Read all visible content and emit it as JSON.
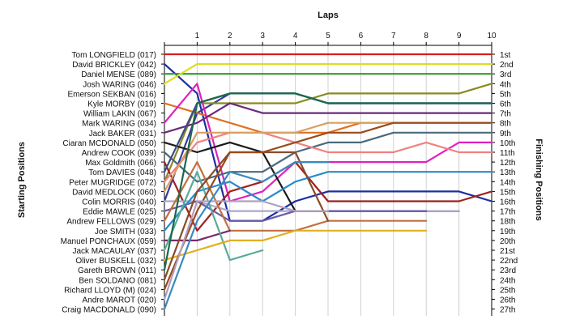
{
  "chart_data": {
    "type": "line",
    "x_axis_title": "Laps",
    "left_axis_title": "Starting Positions",
    "right_axis_title": "Finishing Positions",
    "laps": [
      1,
      2,
      3,
      4,
      5,
      6,
      7,
      8,
      9,
      10
    ],
    "lap_labels": [
      "1",
      "2",
      "3",
      "4",
      "5",
      "6",
      "7",
      "8",
      "9",
      "10"
    ],
    "start_labels": [
      "Tom LONGFIELD (017)",
      "David BRICKLEY (042)",
      "Daniel MENSE (089)",
      "Josh WARING (046)",
      "Emerson SEKBAN (016)",
      "Kyle MORBY (019)",
      "William LAKIN (067)",
      "Mark WARING (034)",
      "Jack BAKER (031)",
      "Ciaran MCDONALD (050)",
      "Andrew COOK (039)",
      "Max Goldmith (066)",
      "Tom DAVIES (048)",
      "Peter MUGRIDGE (072)",
      "David MEDLOCK (060)",
      "Colin MORRIS (040)",
      "Eddie MAWLE (025)",
      "Andrew FELLOWS (029)",
      "Joe SMITH (033)",
      "Manuel PONCHAUX (059)",
      "Jack MACAULAY (037)",
      "Oliver BUSKELL (032)",
      "Gareth BROWN (011)",
      "Ben SOLDANO (081)",
      "Richard LLOYD  (M) (024)",
      "Andre MAROT (020)",
      "Craig MACDONALD (090)"
    ],
    "finish_labels": [
      "1st",
      "2nd",
      "3rd",
      "4th",
      "5th",
      "6th",
      "7th",
      "8th",
      "9th",
      "10th",
      "11th",
      "12th",
      "13th",
      "14th",
      "15th",
      "16th",
      "17th",
      "18th",
      "19th",
      "20th",
      "21st",
      "22nd",
      "23rd",
      "24th",
      "25th",
      "26th",
      "27th"
    ],
    "y_range": [
      1,
      27
    ],
    "series": [
      {
        "color": "#d42020",
        "positions": [
          1,
          1,
          1,
          1,
          1,
          1,
          1,
          1,
          1,
          1,
          1
        ]
      },
      {
        "color": "#1a2fa0",
        "positions": [
          2,
          5,
          18,
          18,
          16,
          15,
          15,
          15,
          15,
          15,
          16
        ]
      },
      {
        "color": "#2e9e2e",
        "positions": [
          3,
          3,
          3,
          3,
          3,
          3,
          3,
          3,
          3,
          3,
          3
        ]
      },
      {
        "color": "#dddd22",
        "positions": [
          4,
          2,
          2,
          2,
          2,
          2,
          2,
          2,
          2,
          2,
          2
        ]
      },
      {
        "color": "#3a3aa0",
        "positions": [
          16,
          7,
          5,
          5,
          5,
          6,
          6,
          6,
          6,
          6,
          6
        ]
      },
      {
        "color": "#e07020",
        "positions": [
          6,
          7,
          8,
          9,
          9,
          9,
          8,
          8,
          8,
          8,
          8
        ]
      },
      {
        "color": "#8a8a20",
        "positions": [
          14,
          6,
          6,
          6,
          6,
          5,
          5,
          5,
          5,
          5,
          4
        ]
      },
      {
        "color": "#e020c0",
        "positions": [
          8,
          4,
          16,
          15,
          12,
          12,
          12,
          12,
          12,
          10,
          10
        ]
      },
      {
        "color": "#6a2a7a",
        "positions": [
          9,
          8,
          6,
          7,
          7,
          7,
          7,
          7,
          7,
          7,
          7
        ]
      },
      {
        "color": "#1a1a1a",
        "positions": [
          10,
          11,
          10,
          11,
          17,
          17,
          17,
          17,
          17,
          17
        ]
      },
      {
        "color": "#4a6a7a",
        "positions": [
          11,
          14,
          13,
          13,
          11,
          10,
          10,
          9,
          9,
          9,
          9
        ]
      },
      {
        "color": "#a02020",
        "positions": [
          12,
          19,
          15,
          14,
          12,
          16,
          16,
          16,
          16,
          16,
          15
        ]
      },
      {
        "color": "#3a4a8a",
        "positions": [
          13,
          6,
          5,
          5,
          5,
          6,
          6,
          6,
          6,
          6,
          6
        ]
      },
      {
        "color": "#f08080",
        "positions": [
          14,
          10,
          9,
          9,
          10,
          11,
          11,
          11,
          10,
          11,
          11
        ]
      },
      {
        "color": "#d8a060",
        "positions": [
          15,
          9,
          9,
          9,
          9,
          8,
          8,
          8,
          8,
          8,
          8
        ]
      },
      {
        "color": "#aaaacc",
        "positions": [
          16,
          16,
          17,
          17,
          17,
          17,
          17,
          17,
          17,
          17
        ]
      },
      {
        "color": "#6a5aaa",
        "positions": [
          17,
          16,
          18,
          18,
          17,
          17,
          17,
          17,
          17
        ]
      },
      {
        "color": "#c07040",
        "positions": [
          18,
          12,
          19,
          19,
          19,
          18,
          18,
          18,
          18
        ]
      },
      {
        "color": "#2a8aca",
        "positions": [
          19,
          15,
          14,
          16,
          14,
          13,
          13,
          13,
          13,
          13,
          13
        ]
      },
      {
        "color": "#7a2a6a",
        "positions": [
          20,
          20,
          19
        ]
      },
      {
        "color": "#5aaa9a",
        "positions": [
          21,
          13,
          22,
          21
        ]
      },
      {
        "color": "#e0b020",
        "positions": [
          22,
          21,
          20,
          20,
          19,
          19,
          19,
          19,
          19
        ]
      },
      {
        "color": "#1a6a4a",
        "positions": [
          23,
          6,
          5,
          5,
          5,
          6,
          6,
          6,
          6,
          6,
          6
        ]
      },
      {
        "color": "#8a4a2a",
        "positions": [
          24,
          15,
          11,
          11,
          11,
          18
        ]
      },
      {
        "color": "#9a4a1a",
        "positions": [
          25,
          17,
          11,
          11,
          10,
          9,
          9,
          8,
          8,
          8,
          8
        ]
      },
      {
        "color": "#b0a0c0",
        "positions": [
          26,
          16,
          16,
          16,
          17,
          17
        ]
      },
      {
        "color": "#3a8ac0",
        "positions": [
          27,
          18,
          13,
          14,
          12,
          12
        ]
      }
    ]
  }
}
